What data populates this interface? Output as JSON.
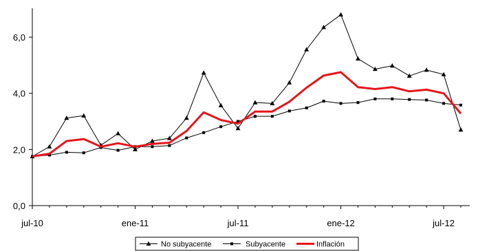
{
  "chart_data": {
    "type": "line",
    "title": "",
    "xlabel": "",
    "ylabel": "",
    "ylim": [
      0,
      7
    ],
    "y_ticks": [
      0,
      2,
      4,
      6
    ],
    "y_tick_labels": [
      "0,0",
      "2,0",
      "4,0",
      "6,0"
    ],
    "x_tick_labels": [
      "jul-10",
      "ene-11",
      "jul-11",
      "ene-12",
      "jul-12"
    ],
    "x_tick_months": [
      0,
      6,
      12,
      18,
      24
    ],
    "x_range_months": [
      0,
      25
    ],
    "grid": false,
    "legend_position": "bottom",
    "series": [
      {
        "name": "No subyacente",
        "color": "#000000",
        "marker": "triangle",
        "x_months": [
          0,
          1,
          2,
          3,
          4,
          5,
          6,
          7,
          8,
          9,
          10,
          11,
          12,
          13,
          14,
          15,
          16,
          17,
          18,
          19,
          20,
          21,
          22,
          23,
          24,
          25
        ],
        "values": [
          1.75,
          2.1,
          3.12,
          3.2,
          2.15,
          2.57,
          2.0,
          2.3,
          2.4,
          3.12,
          4.73,
          3.57,
          2.75,
          3.67,
          3.64,
          4.38,
          5.56,
          6.35,
          6.8,
          5.23,
          4.86,
          4.98,
          4.62,
          4.83,
          4.67,
          2.7
        ]
      },
      {
        "name": "Subyacente",
        "color": "#000000",
        "marker": "square",
        "x_months": [
          0,
          1,
          2,
          3,
          4,
          5,
          6,
          7,
          8,
          9,
          10,
          11,
          12,
          13,
          14,
          15,
          16,
          17,
          18,
          19,
          20,
          21,
          22,
          23,
          24,
          25
        ],
        "values": [
          1.75,
          1.8,
          1.9,
          1.88,
          2.07,
          1.97,
          2.1,
          2.1,
          2.14,
          2.41,
          2.6,
          2.81,
          3.0,
          3.18,
          3.18,
          3.37,
          3.48,
          3.72,
          3.64,
          3.67,
          3.8,
          3.8,
          3.78,
          3.76,
          3.64,
          3.58
        ]
      },
      {
        "name": "Inflación",
        "color": "#e8141b",
        "marker": "none",
        "x_months": [
          0,
          1,
          2,
          3,
          4,
          5,
          6,
          7,
          8,
          9,
          10,
          11,
          12,
          13,
          14,
          15,
          16,
          17,
          18,
          19,
          20,
          21,
          22,
          23,
          24,
          25
        ],
        "values": [
          1.75,
          1.85,
          2.3,
          2.37,
          2.1,
          2.22,
          2.1,
          2.2,
          2.24,
          2.66,
          3.32,
          3.05,
          2.92,
          3.35,
          3.35,
          3.7,
          4.2,
          4.63,
          4.75,
          4.22,
          4.15,
          4.22,
          4.07,
          4.13,
          4.0,
          3.28
        ]
      }
    ]
  }
}
